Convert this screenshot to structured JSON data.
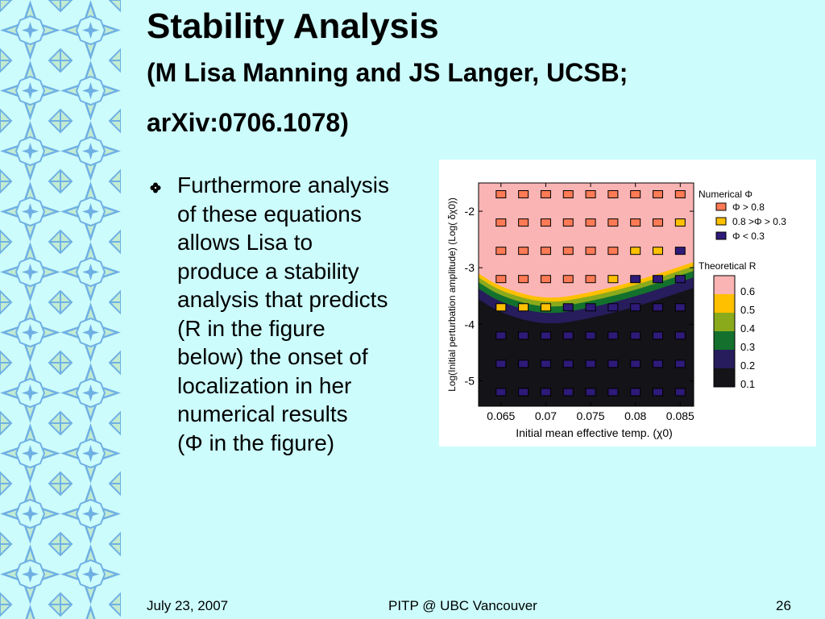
{
  "slide": {
    "title": "Stability Analysis",
    "subtitle_line1": "(M Lisa Manning and JS Langer, UCSB;",
    "subtitle_line2": "arXiv:0706.1078)",
    "bullet_lines": [
      "Furthermore analysis",
      "of these equations",
      "allows Lisa to",
      "produce a stability",
      "analysis that predicts",
      "(R in the figure",
      "below) the onset of",
      "localization in her",
      "numerical results",
      "(Φ in the figure)"
    ]
  },
  "footer": {
    "date": "July 23, 2007",
    "venue": "PITP @ UBC Vancouver",
    "page": "26"
  },
  "colors": {
    "background": "#ccfcfc",
    "pattern_light": "#c2ecd2",
    "pattern_blue": "#6fb0e4"
  },
  "chart_data": {
    "type": "heatmap",
    "xlabel": "Initial mean effective temp. (χ0)",
    "ylabel": "Log(Initial perturbation amplitude) (Log( δχ0))",
    "x_ticks": [
      0.065,
      0.07,
      0.075,
      0.08,
      0.085
    ],
    "x_tick_labels": [
      "0.065",
      "0.07",
      "0.075",
      "0.08",
      "0.085"
    ],
    "y_ticks": [
      -2,
      -3,
      -4,
      -5
    ],
    "y_tick_labels": [
      "-2",
      "-3",
      "-4",
      "-5"
    ],
    "xlim": [
      0.0625,
      0.0865
    ],
    "ylim": [
      -5.45,
      -1.5
    ],
    "grid": false,
    "numerical_legend_title": "Numerical Φ",
    "numerical_categories": [
      {
        "label": "Φ > 0.8",
        "color": "#ff7a55"
      },
      {
        "label": "0.8 >Φ > 0.3",
        "color": "#ffc000"
      },
      {
        "label": "Φ < 0.3",
        "color": "#2e1a78"
      }
    ],
    "theoretical_legend_title": "Theoretical R",
    "contour_levels": [
      {
        "label": "0.6",
        "color": "#fbb4b4"
      },
      {
        "label": "0.5",
        "color": "#ffc000"
      },
      {
        "label": "0.4",
        "color": "#8aaa1c"
      },
      {
        "label": "0.3",
        "color": "#13712d"
      },
      {
        "label": "0.2",
        "color": "#271c5c"
      },
      {
        "label": "0.1",
        "color": "#131318"
      }
    ],
    "grid_x": [
      0.065,
      0.0675,
      0.07,
      0.0725,
      0.075,
      0.0775,
      0.08,
      0.0825,
      0.085
    ],
    "grid_y": [
      -1.7,
      -2.2,
      -2.7,
      -3.2,
      -3.7,
      -4.2,
      -4.7,
      -5.2
    ],
    "boundary_log_amp": [
      {
        "x": 0.0625,
        "y": -3.1
      },
      {
        "x": 0.065,
        "y": -3.35
      },
      {
        "x": 0.07,
        "y": -3.57
      },
      {
        "x": 0.075,
        "y": -3.44
      },
      {
        "x": 0.08,
        "y": -3.24
      },
      {
        "x": 0.0865,
        "y": -2.9
      }
    ],
    "points": [
      {
        "x": 0.065,
        "y": -1.7,
        "class": "high"
      },
      {
        "x": 0.0675,
        "y": -1.7,
        "class": "high"
      },
      {
        "x": 0.07,
        "y": -1.7,
        "class": "high"
      },
      {
        "x": 0.0725,
        "y": -1.7,
        "class": "high"
      },
      {
        "x": 0.075,
        "y": -1.7,
        "class": "high"
      },
      {
        "x": 0.0775,
        "y": -1.7,
        "class": "high"
      },
      {
        "x": 0.08,
        "y": -1.7,
        "class": "high"
      },
      {
        "x": 0.0825,
        "y": -1.7,
        "class": "high"
      },
      {
        "x": 0.085,
        "y": -1.7,
        "class": "high"
      },
      {
        "x": 0.065,
        "y": -2.2,
        "class": "high"
      },
      {
        "x": 0.0675,
        "y": -2.2,
        "class": "high"
      },
      {
        "x": 0.07,
        "y": -2.2,
        "class": "high"
      },
      {
        "x": 0.0725,
        "y": -2.2,
        "class": "high"
      },
      {
        "x": 0.075,
        "y": -2.2,
        "class": "high"
      },
      {
        "x": 0.0775,
        "y": -2.2,
        "class": "high"
      },
      {
        "x": 0.08,
        "y": -2.2,
        "class": "high"
      },
      {
        "x": 0.0825,
        "y": -2.2,
        "class": "high"
      },
      {
        "x": 0.085,
        "y": -2.2,
        "class": "mid"
      },
      {
        "x": 0.065,
        "y": -2.7,
        "class": "high"
      },
      {
        "x": 0.0675,
        "y": -2.7,
        "class": "high"
      },
      {
        "x": 0.07,
        "y": -2.7,
        "class": "high"
      },
      {
        "x": 0.0725,
        "y": -2.7,
        "class": "high"
      },
      {
        "x": 0.075,
        "y": -2.7,
        "class": "high"
      },
      {
        "x": 0.0775,
        "y": -2.7,
        "class": "high"
      },
      {
        "x": 0.08,
        "y": -2.7,
        "class": "mid"
      },
      {
        "x": 0.0825,
        "y": -2.7,
        "class": "mid"
      },
      {
        "x": 0.085,
        "y": -2.7,
        "class": "low"
      },
      {
        "x": 0.065,
        "y": -3.2,
        "class": "high"
      },
      {
        "x": 0.0675,
        "y": -3.2,
        "class": "high"
      },
      {
        "x": 0.07,
        "y": -3.2,
        "class": "high"
      },
      {
        "x": 0.0725,
        "y": -3.2,
        "class": "high"
      },
      {
        "x": 0.075,
        "y": -3.2,
        "class": "high"
      },
      {
        "x": 0.0775,
        "y": -3.2,
        "class": "mid"
      },
      {
        "x": 0.08,
        "y": -3.2,
        "class": "low"
      },
      {
        "x": 0.0825,
        "y": -3.2,
        "class": "low"
      },
      {
        "x": 0.085,
        "y": -3.2,
        "class": "low"
      },
      {
        "x": 0.065,
        "y": -3.7,
        "class": "mid"
      },
      {
        "x": 0.0675,
        "y": -3.7,
        "class": "mid"
      },
      {
        "x": 0.07,
        "y": -3.7,
        "class": "mid"
      },
      {
        "x": 0.0725,
        "y": -3.7,
        "class": "low"
      },
      {
        "x": 0.075,
        "y": -3.7,
        "class": "low"
      },
      {
        "x": 0.0775,
        "y": -3.7,
        "class": "low"
      },
      {
        "x": 0.08,
        "y": -3.7,
        "class": "low"
      },
      {
        "x": 0.0825,
        "y": -3.7,
        "class": "low"
      },
      {
        "x": 0.085,
        "y": -3.7,
        "class": "low"
      },
      {
        "x": 0.065,
        "y": -4.2,
        "class": "low"
      },
      {
        "x": 0.0675,
        "y": -4.2,
        "class": "low"
      },
      {
        "x": 0.07,
        "y": -4.2,
        "class": "low"
      },
      {
        "x": 0.0725,
        "y": -4.2,
        "class": "low"
      },
      {
        "x": 0.075,
        "y": -4.2,
        "class": "low"
      },
      {
        "x": 0.0775,
        "y": -4.2,
        "class": "low"
      },
      {
        "x": 0.08,
        "y": -4.2,
        "class": "low"
      },
      {
        "x": 0.0825,
        "y": -4.2,
        "class": "low"
      },
      {
        "x": 0.085,
        "y": -4.2,
        "class": "low"
      },
      {
        "x": 0.065,
        "y": -4.7,
        "class": "low"
      },
      {
        "x": 0.0675,
        "y": -4.7,
        "class": "low"
      },
      {
        "x": 0.07,
        "y": -4.7,
        "class": "low"
      },
      {
        "x": 0.0725,
        "y": -4.7,
        "class": "low"
      },
      {
        "x": 0.075,
        "y": -4.7,
        "class": "low"
      },
      {
        "x": 0.0775,
        "y": -4.7,
        "class": "low"
      },
      {
        "x": 0.08,
        "y": -4.7,
        "class": "low"
      },
      {
        "x": 0.0825,
        "y": -4.7,
        "class": "low"
      },
      {
        "x": 0.085,
        "y": -4.7,
        "class": "low"
      },
      {
        "x": 0.065,
        "y": -5.2,
        "class": "low"
      },
      {
        "x": 0.0675,
        "y": -5.2,
        "class": "low"
      },
      {
        "x": 0.07,
        "y": -5.2,
        "class": "low"
      },
      {
        "x": 0.0725,
        "y": -5.2,
        "class": "low"
      },
      {
        "x": 0.075,
        "y": -5.2,
        "class": "low"
      },
      {
        "x": 0.0775,
        "y": -5.2,
        "class": "low"
      },
      {
        "x": 0.08,
        "y": -5.2,
        "class": "low"
      },
      {
        "x": 0.0825,
        "y": -5.2,
        "class": "low"
      },
      {
        "x": 0.085,
        "y": -5.2,
        "class": "low"
      }
    ]
  }
}
